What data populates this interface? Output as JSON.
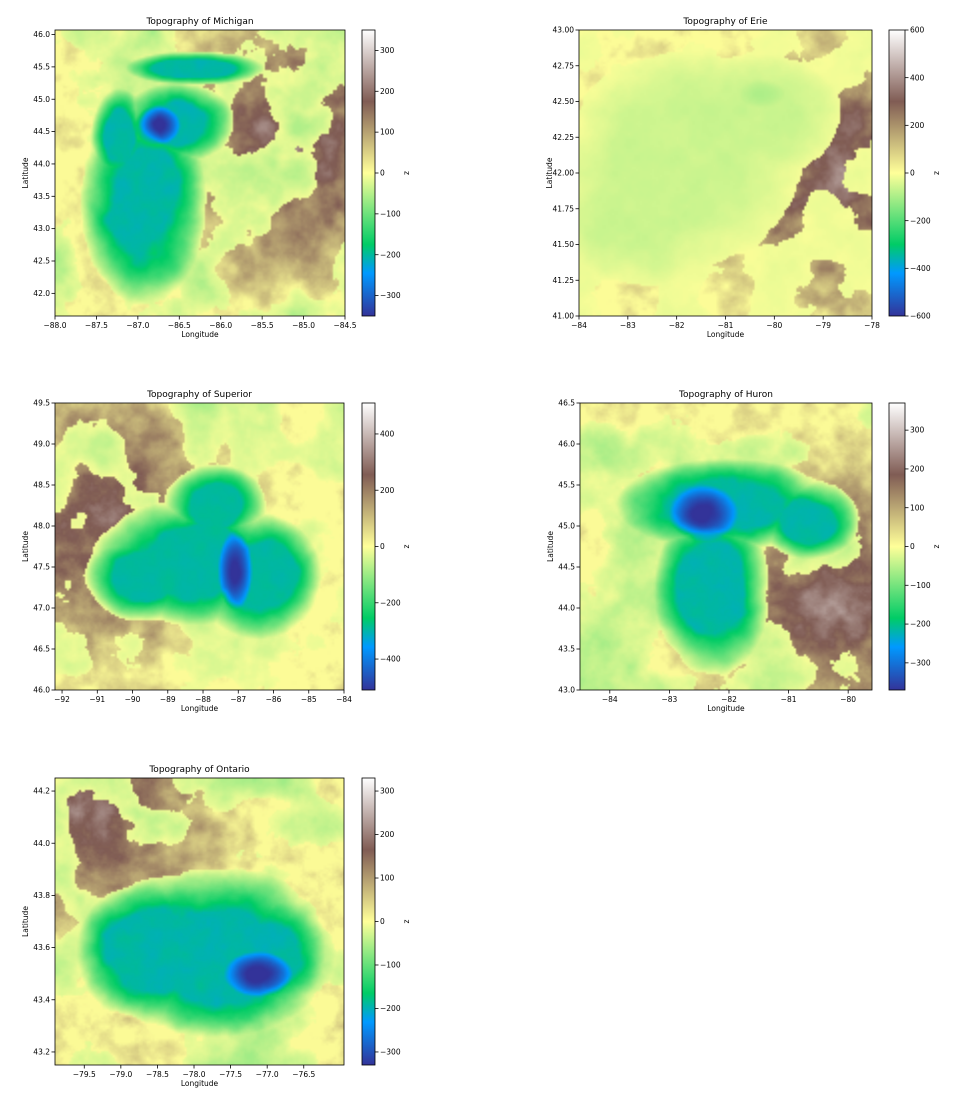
{
  "colormap": {
    "name": "terrain",
    "stops": [
      {
        "t": 0.0,
        "color": "#333399"
      },
      {
        "t": 0.15,
        "color": "#0099ff"
      },
      {
        "t": 0.25,
        "color": "#00cc66"
      },
      {
        "t": 0.5,
        "color": "#ffff99"
      },
      {
        "t": 0.75,
        "color": "#805c54"
      },
      {
        "t": 1.0,
        "color": "#ffffff"
      }
    ]
  },
  "chart_data": [
    {
      "type": "heatmap",
      "title": "Topography of Michigan",
      "xlabel": "Longitude",
      "ylabel": "Latitude",
      "colorbar_label": "z",
      "xlim": [
        -88.0,
        -84.5
      ],
      "ylim": [
        41.65,
        46.07
      ],
      "zlim": [
        -350,
        350
      ],
      "xticks": [
        -88.0,
        -87.5,
        -87.0,
        -86.5,
        -86.0,
        -85.5,
        -85.0,
        -84.5
      ],
      "xtick_labels": [
        "−88.0",
        "−87.5",
        "−87.0",
        "−86.5",
        "−86.0",
        "−85.5",
        "−85.0",
        "−84.5"
      ],
      "yticks": [
        42.0,
        42.5,
        43.0,
        43.5,
        44.0,
        44.5,
        45.0,
        45.5,
        46.0
      ],
      "ytick_labels": [
        "42.0",
        "42.5",
        "43.0",
        "43.5",
        "44.0",
        "44.5",
        "45.0",
        "45.5",
        "46.0"
      ],
      "cbar_ticks": [
        -300,
        -200,
        -100,
        0,
        100,
        200,
        300
      ],
      "cbar_tick_labels": [
        "−300",
        "−200",
        "−100",
        "0",
        "100",
        "200",
        "300"
      ]
    },
    {
      "type": "heatmap",
      "title": "Topography of Erie",
      "xlabel": "Longitude",
      "ylabel": "Latitude",
      "colorbar_label": "z",
      "xlim": [
        -84,
        -78
      ],
      "ylim": [
        41.0,
        43.0
      ],
      "zlim": [
        -600,
        600
      ],
      "xticks": [
        -84,
        -83,
        -82,
        -81,
        -80,
        -79,
        -78
      ],
      "xtick_labels": [
        "−84",
        "−83",
        "−82",
        "−81",
        "−80",
        "−79",
        "−78"
      ],
      "yticks": [
        41.0,
        41.25,
        41.5,
        41.75,
        42.0,
        42.25,
        42.5,
        42.75,
        43.0
      ],
      "ytick_labels": [
        "41.00",
        "41.25",
        "41.50",
        "41.75",
        "42.00",
        "42.25",
        "42.50",
        "42.75",
        "43.00"
      ],
      "cbar_ticks": [
        -600,
        -400,
        -200,
        0,
        200,
        400,
        600
      ],
      "cbar_tick_labels": [
        "−600",
        "−400",
        "−200",
        "0",
        "200",
        "400",
        "600"
      ]
    },
    {
      "type": "heatmap",
      "title": "Topography of Superior",
      "xlabel": "Longitude",
      "ylabel": "Latitude",
      "colorbar_label": "z",
      "xlim": [
        -92.2,
        -84.0
      ],
      "ylim": [
        46.0,
        49.5
      ],
      "zlim": [
        -510,
        510
      ],
      "xticks": [
        -92,
        -91,
        -90,
        -89,
        -88,
        -87,
        -86,
        -85,
        -84
      ],
      "xtick_labels": [
        "−92",
        "−91",
        "−90",
        "−89",
        "−88",
        "−87",
        "−86",
        "−85",
        "−84"
      ],
      "yticks": [
        46.0,
        46.5,
        47.0,
        47.5,
        48.0,
        48.5,
        49.0,
        49.5
      ],
      "ytick_labels": [
        "46.0",
        "46.5",
        "47.0",
        "47.5",
        "48.0",
        "48.5",
        "49.0",
        "49.5"
      ],
      "cbar_ticks": [
        -400,
        -200,
        0,
        200,
        400
      ],
      "cbar_tick_labels": [
        "−400",
        "−200",
        "0",
        "200",
        "400"
      ]
    },
    {
      "type": "heatmap",
      "title": "Topography of Huron",
      "xlabel": "Longitude",
      "ylabel": "Latitude",
      "colorbar_label": "z",
      "xlim": [
        -84.5,
        -79.6
      ],
      "ylim": [
        43.0,
        46.5
      ],
      "zlim": [
        -370,
        370
      ],
      "xticks": [
        -84,
        -83,
        -82,
        -81,
        -80
      ],
      "xtick_labels": [
        "−84",
        "−83",
        "−82",
        "−81",
        "−80"
      ],
      "yticks": [
        43.0,
        43.5,
        44.0,
        44.5,
        45.0,
        45.5,
        46.0,
        46.5
      ],
      "ytick_labels": [
        "43.0",
        "43.5",
        "44.0",
        "44.5",
        "45.0",
        "45.5",
        "46.0",
        "46.5"
      ],
      "cbar_ticks": [
        -300,
        -200,
        -100,
        0,
        100,
        200,
        300
      ],
      "cbar_tick_labels": [
        "−300",
        "−200",
        "−100",
        "0",
        "100",
        "200",
        "300"
      ]
    },
    {
      "type": "heatmap",
      "title": "Topography of Ontario",
      "xlabel": "Longitude",
      "ylabel": "Latitude",
      "colorbar_label": "z",
      "xlim": [
        -79.9,
        -75.95
      ],
      "ylim": [
        43.15,
        44.25
      ],
      "zlim": [
        -330,
        330
      ],
      "xticks": [
        -79.5,
        -79.0,
        -78.5,
        -78.0,
        -77.5,
        -77.0,
        -76.5
      ],
      "xtick_labels": [
        "−79.5",
        "−79.0",
        "−78.5",
        "−78.0",
        "−77.5",
        "−77.0",
        "−76.5"
      ],
      "yticks": [
        43.2,
        43.4,
        43.6,
        43.8,
        44.0,
        44.2
      ],
      "ytick_labels": [
        "43.2",
        "43.4",
        "43.6",
        "43.8",
        "44.0",
        "44.2"
      ],
      "cbar_ticks": [
        -300,
        -200,
        -100,
        0,
        100,
        200,
        300
      ],
      "cbar_tick_labels": [
        "−300",
        "−200",
        "−100",
        "0",
        "100",
        "200",
        "300"
      ]
    }
  ]
}
